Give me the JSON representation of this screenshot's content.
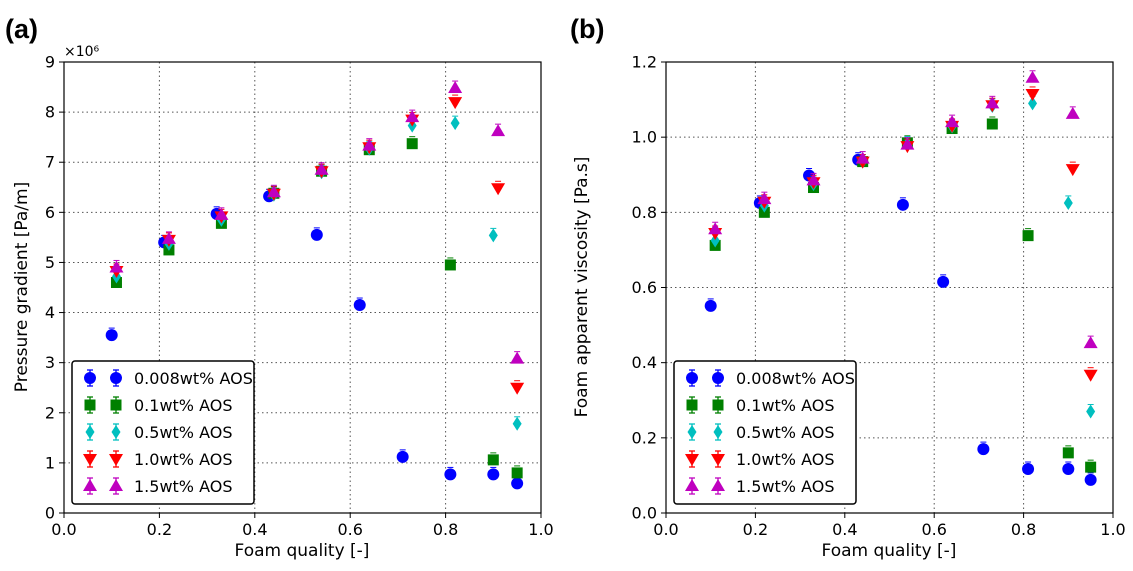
{
  "chart_data": [
    {
      "type": "scatter",
      "panel_label": "(a)",
      "xlabel": "Foam quality [-]",
      "ylabel": "Pressure gradient [Pa/m]",
      "y_multiplier_label": "×10⁶",
      "xlim": [
        0.0,
        1.0
      ],
      "ylim": [
        0,
        9
      ],
      "xticks": [
        "0.0",
        "0.2",
        "0.4",
        "0.6",
        "0.8",
        "1.0"
      ],
      "yticks": [
        "0",
        "1",
        "2",
        "3",
        "4",
        "5",
        "6",
        "7",
        "8",
        "9"
      ],
      "grid": true,
      "legend_position": "lower-left",
      "series": [
        {
          "name": "0.008wt% AOS",
          "color": "#0000ff",
          "marker": "circle",
          "x": [
            0.1,
            0.21,
            0.32,
            0.43,
            0.53,
            0.62,
            0.71,
            0.81,
            0.9,
            0.95
          ],
          "y": [
            3.55,
            5.4,
            5.97,
            6.32,
            5.55,
            4.15,
            1.12,
            0.77,
            0.77,
            0.59
          ]
        },
        {
          "name": "0.1wt% AOS",
          "color": "#008000",
          "marker": "square",
          "x": [
            0.11,
            0.22,
            0.33,
            0.44,
            0.54,
            0.64,
            0.73,
            0.81,
            0.9,
            0.95
          ],
          "y": [
            4.6,
            5.25,
            5.78,
            6.38,
            6.82,
            7.25,
            7.37,
            4.95,
            1.06,
            0.8
          ]
        },
        {
          "name": "0.5wt% AOS",
          "color": "#00bfbf",
          "marker": "diamond",
          "x": [
            0.11,
            0.22,
            0.33,
            0.44,
            0.54,
            0.64,
            0.73,
            0.82,
            0.9,
            0.95
          ],
          "y": [
            4.72,
            5.37,
            5.85,
            6.35,
            6.8,
            7.27,
            7.73,
            7.78,
            5.54,
            1.78
          ]
        },
        {
          "name": "1.0wt% AOS",
          "color": "#ff0000",
          "marker": "triangle-down",
          "x": [
            0.11,
            0.22,
            0.33,
            0.44,
            0.54,
            0.64,
            0.73,
            0.82,
            0.91,
            0.95
          ],
          "y": [
            4.83,
            5.45,
            5.92,
            6.37,
            6.82,
            7.3,
            7.85,
            8.2,
            6.48,
            2.5
          ]
        },
        {
          "name": "1.5wt% AOS",
          "color": "#bf00bf",
          "marker": "triangle-up",
          "x": [
            0.11,
            0.22,
            0.33,
            0.44,
            0.54,
            0.64,
            0.73,
            0.82,
            0.91,
            0.95
          ],
          "y": [
            4.9,
            5.47,
            5.95,
            6.4,
            6.85,
            7.33,
            7.9,
            8.48,
            7.62,
            3.08
          ]
        }
      ]
    },
    {
      "type": "scatter",
      "panel_label": "(b)",
      "xlabel": "Foam quality [-]",
      "ylabel": "Foam apparent viscosity [Pa.s]",
      "xlim": [
        0.0,
        1.0
      ],
      "ylim": [
        0.0,
        1.2
      ],
      "xticks": [
        "0.0",
        "0.2",
        "0.4",
        "0.6",
        "0.8",
        "1.0"
      ],
      "yticks": [
        "0.0",
        "0.2",
        "0.4",
        "0.6",
        "0.8",
        "1.0",
        "1.2"
      ],
      "grid": true,
      "legend_position": "lower-left",
      "series": [
        {
          "name": "0.008wt% AOS",
          "color": "#0000ff",
          "marker": "circle",
          "x": [
            0.1,
            0.21,
            0.32,
            0.43,
            0.53,
            0.62,
            0.71,
            0.81,
            0.9,
            0.95
          ],
          "y": [
            0.551,
            0.825,
            0.898,
            0.94,
            0.82,
            0.615,
            0.17,
            0.117,
            0.117,
            0.088
          ]
        },
        {
          "name": "0.1wt% AOS",
          "color": "#008000",
          "marker": "square",
          "x": [
            0.11,
            0.22,
            0.33,
            0.44,
            0.54,
            0.64,
            0.73,
            0.81,
            0.9,
            0.95
          ],
          "y": [
            0.712,
            0.8,
            0.866,
            0.935,
            0.985,
            1.023,
            1.035,
            0.738,
            0.16,
            0.122
          ]
        },
        {
          "name": "0.5wt% AOS",
          "color": "#00bfbf",
          "marker": "diamond",
          "x": [
            0.11,
            0.22,
            0.33,
            0.44,
            0.54,
            0.64,
            0.73,
            0.82,
            0.9,
            0.95
          ],
          "y": [
            0.725,
            0.818,
            0.875,
            0.935,
            0.983,
            1.028,
            1.083,
            1.09,
            0.825,
            0.27
          ]
        },
        {
          "name": "1.0wt% AOS",
          "color": "#ff0000",
          "marker": "triangle-down",
          "x": [
            0.11,
            0.22,
            0.33,
            0.44,
            0.54,
            0.64,
            0.73,
            0.82,
            0.91,
            0.95
          ],
          "y": [
            0.745,
            0.828,
            0.88,
            0.935,
            0.976,
            1.03,
            1.085,
            1.115,
            0.915,
            0.368
          ]
        },
        {
          "name": "1.5wt% AOS",
          "color": "#bf00bf",
          "marker": "triangle-up",
          "x": [
            0.11,
            0.22,
            0.33,
            0.44,
            0.54,
            0.64,
            0.73,
            0.82,
            0.91,
            0.95
          ],
          "y": [
            0.755,
            0.835,
            0.885,
            0.943,
            0.98,
            1.04,
            1.09,
            1.158,
            1.062,
            0.452
          ]
        }
      ]
    }
  ]
}
